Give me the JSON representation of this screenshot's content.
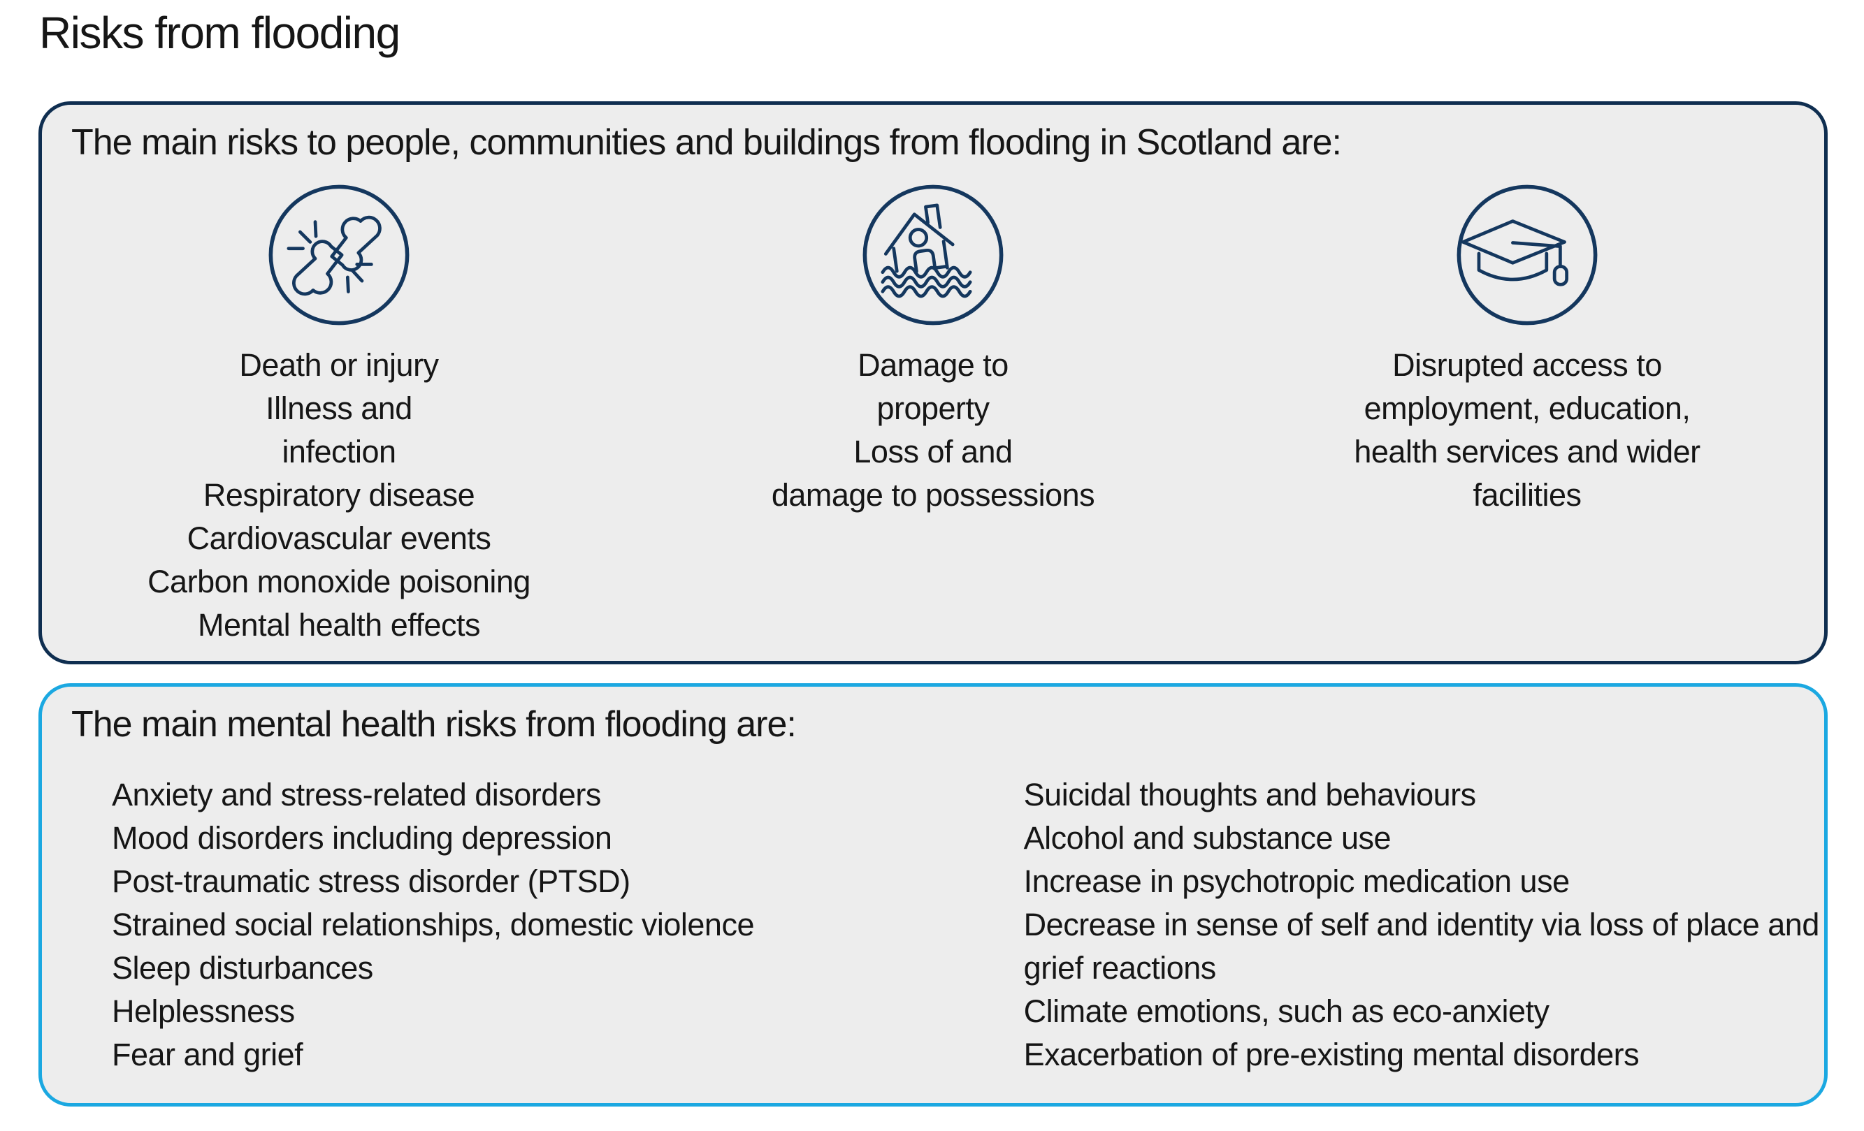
{
  "title": "Risks from flooding",
  "colors": {
    "navy_border": "#0f2e50",
    "icon_navy": "#14375e",
    "blue_border": "#1ba8e1",
    "panel_bg": "#ededed",
    "text": "#161616"
  },
  "risks_panel": {
    "header": "The main risks to people, communities and buildings from flooding in Scotland are:",
    "columns": [
      {
        "icon": "injury-bones-icon",
        "lines": [
          "Death or injury",
          "Illness and",
          "infection",
          "Respiratory disease",
          "Cardiovascular events",
          "Carbon monoxide poisoning",
          "Mental health effects"
        ]
      },
      {
        "icon": "flooded-house-icon",
        "lines": [
          "Damage to",
          "property",
          "Loss of and",
          "damage to possessions"
        ]
      },
      {
        "icon": "graduation-cap-icon",
        "lines": [
          "Disrupted access to",
          "employment, education,",
          "health services and wider",
          "facilities"
        ]
      }
    ]
  },
  "mental_panel": {
    "header": "The main mental health risks from flooding are:",
    "left_items": [
      "Anxiety and stress-related disorders",
      "Mood disorders including depression",
      "Post-traumatic stress disorder (PTSD)",
      "Strained social relationships, domestic violence",
      "Sleep disturbances",
      "Helplessness",
      "Fear and grief"
    ],
    "right_items": [
      "Suicidal thoughts and behaviours",
      "Alcohol and substance use",
      "Increase in psychotropic medication use",
      "Decrease in sense of self and identity via loss of place and grief reactions",
      "Climate emotions, such as eco-anxiety",
      "Exacerbation of pre-existing mental disorders"
    ]
  }
}
